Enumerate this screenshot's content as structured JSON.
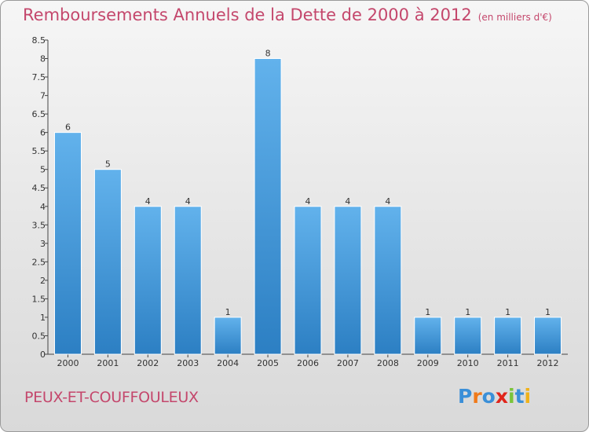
{
  "title": "Remboursements Annuels de la Dette de 2000 à 2012",
  "unit_label": "(en milliers d'€)",
  "commune": "PEUX-ET-COUFFOULEUX",
  "logo": {
    "text": "Proxiti",
    "colors": [
      "#3a8fd8",
      "#f07a1a",
      "#3a8fd8",
      "#e0251b",
      "#7ac43a",
      "#3a8fd8",
      "#f0b21a"
    ]
  },
  "colors": {
    "title": "#c4476c",
    "bar_top": "#62b2ec",
    "bar_bottom": "#2c7fc3",
    "axis": "#333333"
  },
  "chart_data": {
    "type": "bar",
    "title": "Remboursements Annuels de la Dette de 2000 à 2012",
    "unit": "(en milliers d'€)",
    "categories": [
      "2000",
      "2001",
      "2002",
      "2003",
      "2004",
      "2005",
      "2006",
      "2007",
      "2008",
      "2009",
      "2010",
      "2011",
      "2012"
    ],
    "values": [
      6,
      5,
      4,
      4,
      1,
      8,
      4,
      4,
      4,
      1,
      1,
      1,
      1
    ],
    "ylim": [
      0,
      8.5
    ],
    "yticks": [
      "0",
      "0.5",
      "1",
      "1.5",
      "2",
      "2.5",
      "3",
      "3.5",
      "4",
      "4.5",
      "5",
      "5.5",
      "6",
      "6.5",
      "7",
      "7.5",
      "8",
      "8.5"
    ],
    "grid": false,
    "legend": "none"
  }
}
